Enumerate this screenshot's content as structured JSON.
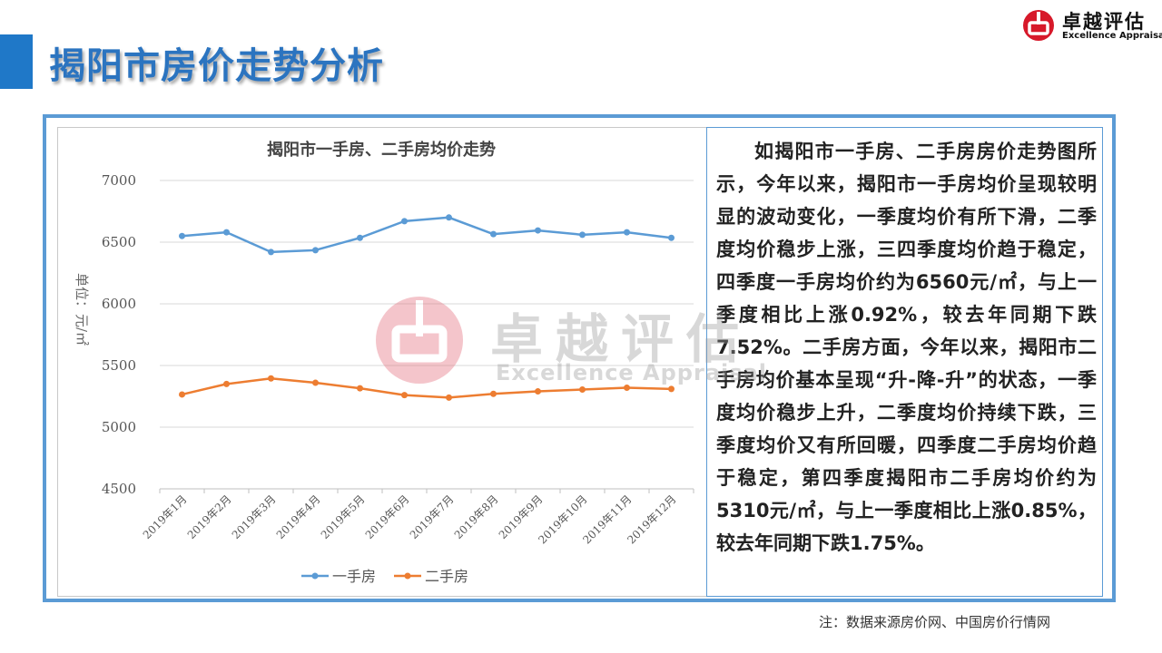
{
  "page": {
    "title": "揭阳市房价走势分析",
    "footnote": "注：数据来源房价网、中国房价行情网"
  },
  "logo": {
    "cn": "卓越评估",
    "en": "Excellence Appraisal"
  },
  "watermark": {
    "cn": "卓越评估",
    "en": "Excellence Appraisal"
  },
  "colors": {
    "accent": "#1f78c8",
    "frame": "#5b9bd5",
    "series_new": "#5b9bd5",
    "series_second": "#ed7d31",
    "logo_red": "#d7192a"
  },
  "analysis_text": "如揭阳市一手房、二手房房价走势图所示，今年以来，揭阳市一手房均价呈现较明显的波动变化，一季度均价有所下滑，二季度均价稳步上涨，三四季度均价趋于稳定，四季度一手房均价约为6560元/㎡，与上一季度相比上涨0.92%，较去年同期下跌7.52%。二手房方面，今年以来，揭阳市二手房均价基本呈现“升-降-升”的状态，一季度均价稳步上升，二季度均价持续下跌，三季度均价又有所回暖，四季度二手房均价趋于稳定，第四季度揭阳市二手房均价约为5310元/㎡，与上一季度相比上涨0.85%，较去年同期下跌1.75%。",
  "chart_data": {
    "type": "line",
    "title": "揭阳市一手房、二手房均价走势",
    "ylabel": "单位：元/㎡",
    "xlabel": "",
    "ylim": [
      4500,
      7000
    ],
    "yticks": [
      4500,
      5000,
      5500,
      6000,
      6500,
      7000
    ],
    "grid": true,
    "legend": "bottom",
    "categories": [
      "2019年1月",
      "2019年2月",
      "2019年3月",
      "2019年4月",
      "2019年5月",
      "2019年6月",
      "2019年7月",
      "2019年8月",
      "2019年9月",
      "2019年10月",
      "2019年11月",
      "2019年12月"
    ],
    "series": [
      {
        "name": "一手房",
        "color": "#5b9bd5",
        "values": [
          6550,
          6580,
          6420,
          6435,
          6535,
          6670,
          6700,
          6565,
          6595,
          6560,
          6580,
          6535
        ]
      },
      {
        "name": "二手房",
        "color": "#ed7d31",
        "values": [
          5265,
          5350,
          5395,
          5360,
          5315,
          5260,
          5240,
          5270,
          5290,
          5305,
          5320,
          5310
        ]
      }
    ]
  }
}
